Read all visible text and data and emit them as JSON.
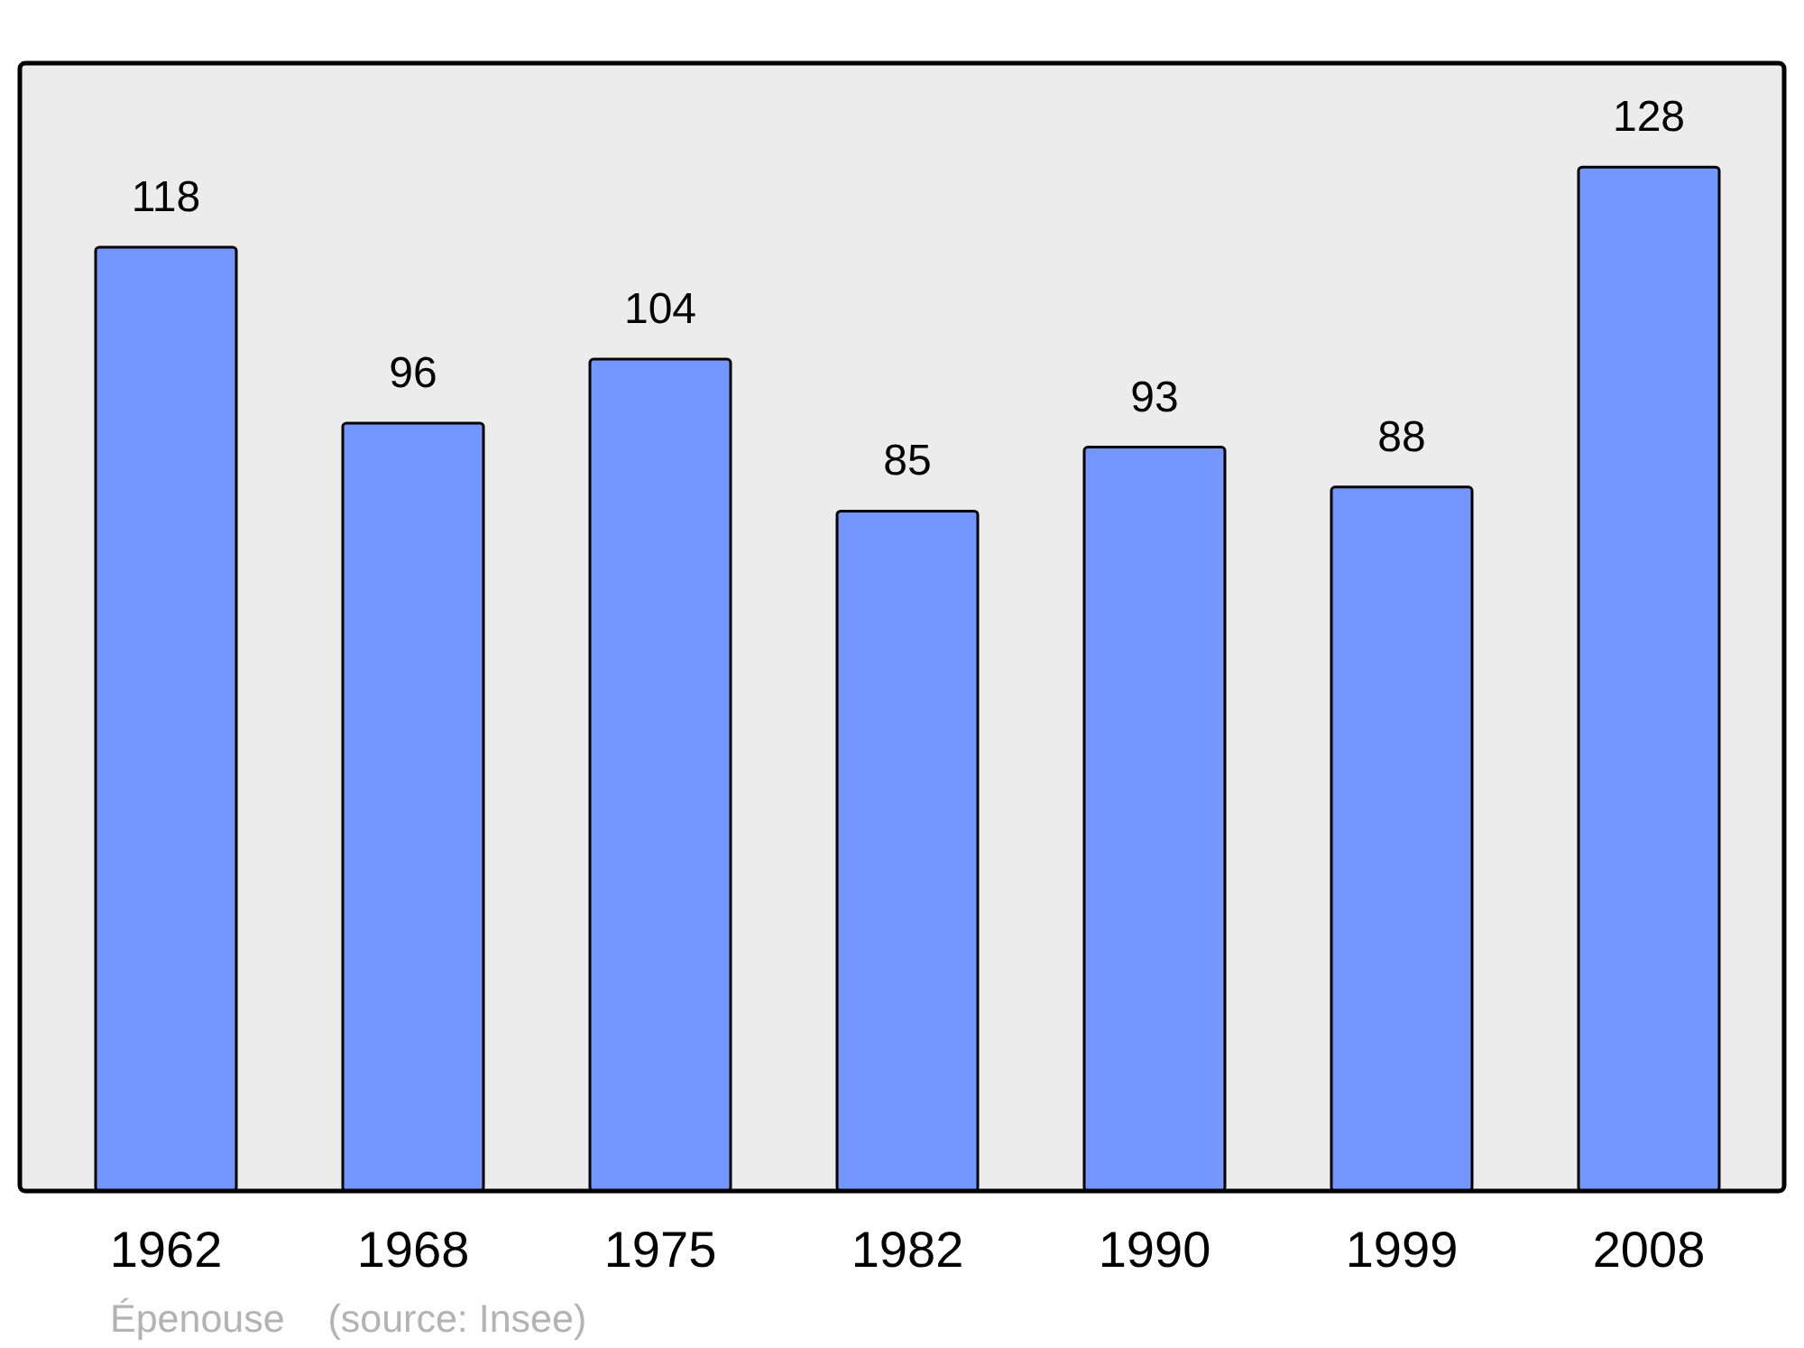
{
  "chart_data": {
    "type": "bar",
    "categories": [
      "1962",
      "1968",
      "1975",
      "1982",
      "1990",
      "1999",
      "2008"
    ],
    "values": [
      118,
      96,
      104,
      85,
      93,
      88,
      128
    ],
    "color": "#7396ff",
    "ylim": [
      0,
      141
    ],
    "tick_labels": "x",
    "data_labels": true,
    "annotations": [
      "Épenouse    (source: Insee)"
    ]
  }
}
